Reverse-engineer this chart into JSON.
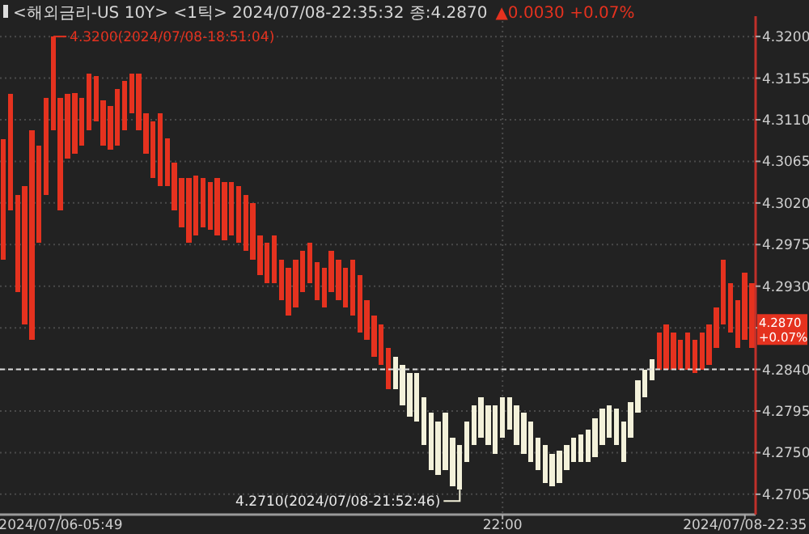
{
  "chart_data": {
    "type": "bar",
    "categories": [
      null,
      null,
      null,
      null,
      null,
      null,
      null,
      null,
      "2024/07/06-05:49",
      null,
      null,
      null,
      null,
      null,
      null,
      null,
      null,
      null,
      null,
      null,
      null,
      null,
      null,
      null,
      null,
      null,
      null,
      null,
      null,
      null,
      null,
      null,
      null,
      null,
      null,
      null,
      null,
      null,
      null,
      null,
      null,
      null,
      null,
      null,
      null,
      null,
      null,
      null,
      null,
      null,
      null,
      null,
      null,
      null,
      null,
      null,
      null,
      null,
      null,
      null,
      null,
      null,
      null,
      null,
      null,
      null,
      null,
      null,
      null,
      null,
      "22:00",
      null,
      null,
      null,
      null,
      null,
      null,
      null,
      null,
      null,
      null,
      null,
      null,
      null,
      null,
      null,
      null,
      null,
      null,
      null,
      null,
      null,
      null,
      null,
      null,
      null,
      null,
      null,
      null,
      null,
      null,
      null,
      null,
      null,
      "2024/07/08-22:35",
      null
    ],
    "colors": [
      "#e5321f",
      "#e5321f",
      "#e5321f",
      "#e5321f",
      "#e5321f",
      "#e5321f",
      "#e5321f",
      "#e5321f",
      "#e5321f",
      "#e5321f",
      "#e5321f",
      "#e5321f",
      "#e5321f",
      "#e5321f",
      "#e5321f",
      "#e5321f",
      "#e5321f",
      "#e5321f",
      "#e5321f",
      "#e5321f",
      "#e5321f",
      "#e5321f",
      "#e5321f",
      "#e5321f",
      "#e5321f",
      "#e5321f",
      "#e5321f",
      "#e5321f",
      "#e5321f",
      "#e5321f",
      "#e5321f",
      "#e5321f",
      "#e5321f",
      "#e5321f",
      "#e5321f",
      "#e5321f",
      "#e5321f",
      "#e5321f",
      "#e5321f",
      "#e5321f",
      "#e5321f",
      "#e5321f",
      "#e5321f",
      "#e5321f",
      "#e5321f",
      "#e5321f",
      "#e5321f",
      "#e5321f",
      "#e5321f",
      "#e5321f",
      "#e5321f",
      "#e5321f",
      "#e5321f",
      "#e5321f",
      "#e5321f",
      "#f3f1da",
      "#f3f1da",
      "#f3f1da",
      "#f3f1da",
      "#f3f1da",
      "#f3f1da",
      "#f3f1da",
      "#f3f1da",
      "#f3f1da",
      "#f3f1da",
      "#f3f1da",
      "#f3f1da",
      "#f3f1da",
      "#f3f1da",
      "#f3f1da",
      "#f3f1da",
      "#f3f1da",
      "#f3f1da",
      "#f3f1da",
      "#f3f1da",
      "#f3f1da",
      "#f3f1da",
      "#f3f1da",
      "#f3f1da",
      "#f3f1da",
      "#f3f1da",
      "#f3f1da",
      "#f3f1da",
      "#f3f1da",
      "#f3f1da",
      "#f3f1da",
      "#f3f1da",
      "#f3f1da",
      "#f3f1da",
      "#f3f1da",
      "#f3f1da",
      "#f3f1da",
      "#e5321f",
      "#e5321f",
      "#e5321f",
      "#e5321f",
      "#e5321f",
      "#e5321f",
      "#e5321f",
      "#e5321f",
      "#e5321f",
      "#e5321f",
      "#e5321f",
      "#e5321f",
      "#e5321f",
      "#e5321f"
    ],
    "base": [
      4.2959,
      4.3012,
      4.2924,
      4.2889,
      4.2872,
      4.2977,
      4.3029,
      4.3099,
      4.3012,
      4.3068,
      4.3073,
      4.3082,
      4.3099,
      4.3108,
      4.3082,
      4.3078,
      4.3082,
      4.3099,
      4.3117,
      4.3099,
      4.3073,
      4.3047,
      4.3038,
      4.3038,
      4.3012,
      4.2994,
      4.2977,
      4.2985,
      4.2994,
      4.2991,
      4.2985,
      4.298,
      4.2985,
      4.2977,
      4.2968,
      4.2959,
      4.2942,
      4.2933,
      4.2933,
      4.2915,
      4.2898,
      4.2907,
      4.2924,
      4.2933,
      4.2915,
      4.2907,
      4.2924,
      4.2915,
      4.2907,
      4.2898,
      4.288,
      4.2872,
      4.2854,
      4.2845,
      4.2819,
      4.2819,
      4.2801,
      4.2789,
      4.2784,
      4.2758,
      4.2731,
      4.2726,
      4.2731,
      4.2714,
      4.271,
      4.274,
      4.2758,
      4.2766,
      4.2758,
      4.2749,
      4.2766,
      4.2775,
      4.2758,
      4.2749,
      4.274,
      4.2731,
      4.2717,
      4.2714,
      4.2717,
      4.2731,
      4.274,
      4.274,
      4.274,
      4.2745,
      4.2758,
      4.2766,
      4.2758,
      4.274,
      4.2766,
      4.2793,
      4.281,
      4.2828,
      4.284,
      4.284,
      4.284,
      4.284,
      4.284,
      4.2836,
      4.284,
      4.2845,
      4.2863,
      4.2889,
      4.288,
      4.2863,
      4.2872,
      4.2863
    ],
    "values": [
      0.013,
      0.0126,
      0.0105,
      0.0149,
      0.0227,
      0.0105,
      0.0105,
      0.0101,
      0.0122,
      0.007,
      0.0066,
      0.0052,
      0.0061,
      0.0049,
      0.0049,
      0.0047,
      0.0061,
      0.0053,
      0.0043,
      0.0061,
      0.0044,
      0.0061,
      0.0079,
      0.0052,
      0.0052,
      0.0053,
      0.007,
      0.0065,
      0.0053,
      0.0052,
      0.0062,
      0.0063,
      0.0058,
      0.0061,
      0.0061,
      0.0061,
      0.0043,
      0.0044,
      0.0052,
      0.0044,
      0.0052,
      0.0052,
      0.0044,
      0.0044,
      0.0041,
      0.0043,
      0.0044,
      0.0044,
      0.0043,
      0.0061,
      0.0062,
      0.0043,
      0.0044,
      0.0044,
      0.0044,
      0.0035,
      0.0044,
      0.0047,
      0.0052,
      0.0052,
      0.0062,
      0.0058,
      0.0062,
      0.0052,
      0.0048,
      0.0044,
      0.0043,
      0.0044,
      0.0043,
      0.0052,
      0.0044,
      0.0035,
      0.0043,
      0.0044,
      0.0044,
      0.0035,
      0.0041,
      0.0035,
      0.0035,
      0.0027,
      0.0026,
      0.003,
      0.0035,
      0.0042,
      0.004,
      0.0035,
      0.004,
      0.0044,
      0.0039,
      0.0035,
      0.003,
      0.0023,
      0.004,
      0.0049,
      0.004,
      0.0032,
      0.004,
      0.0036,
      0.004,
      0.0044,
      0.0044,
      0.007,
      0.0053,
      0.0052,
      0.0073,
      0.007
    ],
    "ylim": [
      4.2683,
      4.3222
    ],
    "yticks": [
      {
        "value": 4.2705,
        "label": "4.2705"
      },
      {
        "value": 4.275,
        "label": "4.2750"
      },
      {
        "value": 4.2795,
        "label": "4.2795"
      },
      {
        "value": 4.284,
        "label": "4.2840"
      },
      {
        "value": 4.2885,
        "label": null
      },
      {
        "value": 4.293,
        "label": "4.2930"
      },
      {
        "value": 4.2975,
        "label": "4.2975"
      },
      {
        "value": 4.302,
        "label": "4.3020"
      },
      {
        "value": 4.3065,
        "label": "4.3065"
      },
      {
        "value": 4.311,
        "label": "4.3110"
      },
      {
        "value": 4.3155,
        "label": "4.3155"
      },
      {
        "value": 4.32,
        "label": "4.3200"
      }
    ],
    "grid": true,
    "ref_lines": [
      {
        "axis": "y",
        "value": 4.284,
        "color": "#dcdcdc",
        "line_style": "dashed"
      }
    ],
    "annotations": [
      "<해외금리-US 10Y> <1틱> 2024/07/08-22:35:32 종:4.2870",
      "▲0.0030 +0.07%",
      "4.3200(2024/07/08-18:51:04)",
      "4.2710(2024/07/08-21:52:46)",
      "4.2870 +0.07%"
    ]
  }
}
